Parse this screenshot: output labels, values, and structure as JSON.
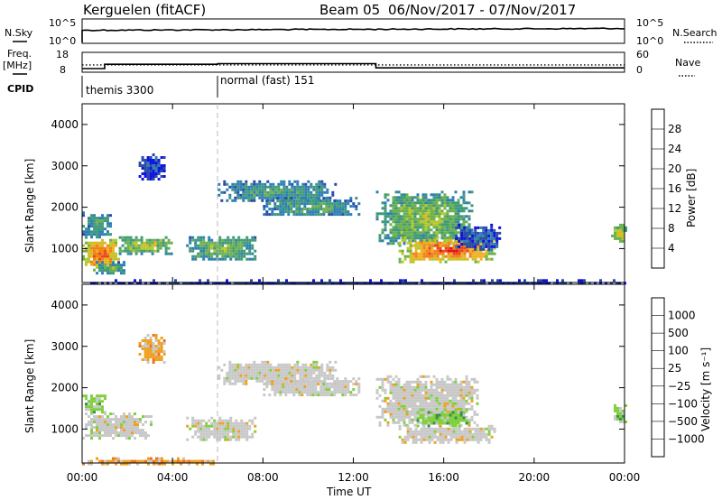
{
  "header": {
    "station": "Kerguelen (fitACF)",
    "beam": "Beam 05",
    "date_range": "06/Nov/2017 - 07/Nov/2017"
  },
  "top_panels": {
    "nsky_label": "N.Sky",
    "nsky_ticks": [
      "10^5",
      "10^0"
    ],
    "nsearch_label": "N.Search",
    "nsearch_ticks": [
      "10^5",
      "10^0"
    ],
    "freq_label": "Freq.",
    "freq_unit": "[MHz]",
    "freq_ticks": [
      "18",
      "8"
    ],
    "nave_label": "Nave",
    "nave_ticks": [
      "60",
      "0"
    ],
    "cpid_label": "CPID",
    "cpid_segments": [
      {
        "start_hour": 0,
        "label": "themis 3300"
      },
      {
        "start_hour": 6,
        "label": "normal (fast) 151"
      }
    ],
    "freq_series_mhz": [
      {
        "from": 0,
        "to": 1,
        "value": 9.8
      },
      {
        "from": 1,
        "to": 6,
        "value": 12.0
      },
      {
        "from": 6,
        "to": 13,
        "value": 12.3
      },
      {
        "from": 13,
        "to": 24,
        "value": 10.2
      }
    ],
    "nave_level": 22
  },
  "chart_data": [
    {
      "type": "heatmap",
      "name": "power",
      "ylabel": "Slant Range [km]",
      "y_ticks": [
        "1000",
        "2000",
        "3000",
        "4000"
      ],
      "ylim": [
        180,
        4500
      ],
      "xlim": [
        0,
        24
      ],
      "colorbar": {
        "label": "Power [dB]",
        "ticks": [
          "28",
          "24",
          "20",
          "16",
          "12",
          "8",
          "4"
        ],
        "range": [
          0,
          30
        ],
        "colors": [
          "#1010e0",
          "#2a4aa8",
          "#2e7fb4",
          "#3f9a7a",
          "#6cb050",
          "#b8c82a",
          "#f0b020",
          "#f08018",
          "#e84818",
          "#e01010"
        ]
      },
      "features": [
        {
          "t0": 0.0,
          "t1": 1.6,
          "r0": 500,
          "r1": 1300,
          "level": 26
        },
        {
          "t0": 0.0,
          "t1": 1.3,
          "r0": 1300,
          "r1": 1900,
          "level": 12
        },
        {
          "t0": 0.6,
          "t1": 1.9,
          "r0": 400,
          "r1": 700,
          "level": 14
        },
        {
          "t0": 1.5,
          "t1": 4.0,
          "r0": 900,
          "r1": 1300,
          "level": 18
        },
        {
          "t0": 2.5,
          "t1": 3.6,
          "r0": 2650,
          "r1": 3300,
          "level": 5
        },
        {
          "t0": 4.6,
          "t1": 7.6,
          "r0": 750,
          "r1": 1300,
          "level": 15
        },
        {
          "t0": 6.0,
          "t1": 11.2,
          "r0": 2150,
          "r1": 2650,
          "level": 12
        },
        {
          "t0": 8.0,
          "t1": 12.3,
          "r0": 1800,
          "r1": 2250,
          "level": 12
        },
        {
          "t0": 13.0,
          "t1": 17.3,
          "r0": 1100,
          "r1": 2400,
          "level": 16
        },
        {
          "t0": 14.0,
          "t1": 18.3,
          "r0": 700,
          "r1": 1300,
          "level": 27
        },
        {
          "t0": 16.5,
          "t1": 18.5,
          "r0": 1000,
          "r1": 1600,
          "level": 6
        },
        {
          "t0": 23.4,
          "t1": 24.0,
          "r0": 1200,
          "r1": 1600,
          "level": 20
        },
        {
          "t0": 0.0,
          "t1": 24.0,
          "r0": 180,
          "r1": 260,
          "level": 5
        }
      ]
    },
    {
      "type": "heatmap",
      "name": "velocity",
      "ylabel": "Slant Range [km]",
      "y_ticks": [
        "1000",
        "2000",
        "3000",
        "4000"
      ],
      "ylim": [
        180,
        4500
      ],
      "xlim": [
        0,
        24
      ],
      "x_ticks": [
        "00:00",
        "04:00",
        "08:00",
        "12:00",
        "16:00",
        "20:00",
        "00:00"
      ],
      "xlabel": "Time UT",
      "colorbar": {
        "label": "Velocity [m s⁻¹]",
        "ticks": [
          "1000",
          "500",
          "100",
          "25",
          "−25",
          "−100",
          "−500",
          "−1000"
        ],
        "colors": [
          "#2040c0",
          "#3a6cb8",
          "#3c8c50",
          "#7ed03c",
          "#c8c8c8",
          "#c8c8c8",
          "#f0a020",
          "#f07020",
          "#e84018",
          "#e01010"
        ]
      },
      "features": [
        {
          "t0": 0.0,
          "t1": 3.0,
          "r0": 800,
          "r1": 1400,
          "cls": "gray"
        },
        {
          "t0": 0.0,
          "t1": 1.0,
          "r0": 1400,
          "r1": 1900,
          "cls": "green"
        },
        {
          "t0": 2.5,
          "t1": 3.6,
          "r0": 2600,
          "r1": 3300,
          "cls": "orange"
        },
        {
          "t0": 4.6,
          "t1": 7.6,
          "r0": 750,
          "r1": 1300,
          "cls": "gray"
        },
        {
          "t0": 6.0,
          "t1": 11.2,
          "r0": 2100,
          "r1": 2650,
          "cls": "gray"
        },
        {
          "t0": 8.0,
          "t1": 12.3,
          "r0": 1800,
          "r1": 2250,
          "cls": "gray"
        },
        {
          "t0": 13.0,
          "t1": 17.5,
          "r0": 1100,
          "r1": 2300,
          "cls": "gray"
        },
        {
          "t0": 14.8,
          "t1": 17.0,
          "r0": 1100,
          "r1": 1500,
          "cls": "green"
        },
        {
          "t0": 14.0,
          "t1": 18.3,
          "r0": 700,
          "r1": 1100,
          "cls": "gray"
        },
        {
          "t0": 23.4,
          "t1": 24.0,
          "r0": 1200,
          "r1": 1600,
          "cls": "green"
        },
        {
          "t0": 0.0,
          "t1": 6.0,
          "r0": 180,
          "r1": 320,
          "cls": "orange"
        }
      ]
    }
  ]
}
